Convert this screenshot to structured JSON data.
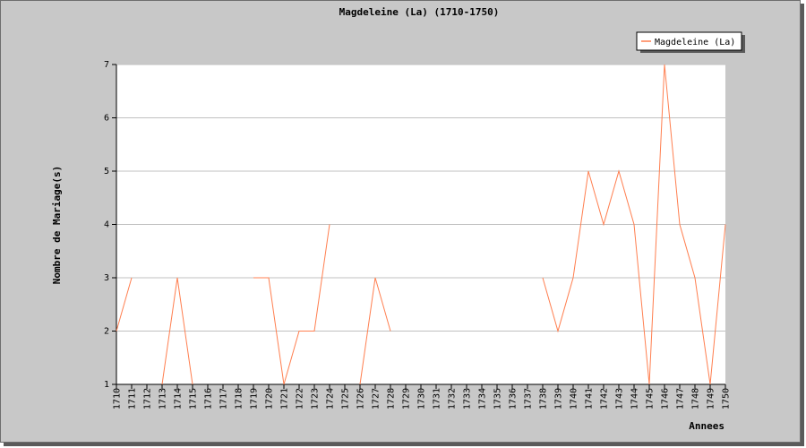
{
  "chart_data": {
    "type": "line",
    "title": "Magdeleine (La) (1710-1750)",
    "xlabel": "Annees",
    "ylabel": "Nombre de Mariage(s)",
    "x": [
      "1710",
      "1711",
      "1712",
      "1713",
      "1714",
      "1715",
      "1716",
      "1717",
      "1718",
      "1719",
      "1720",
      "1721",
      "1722",
      "1723",
      "1724",
      "1725",
      "1726",
      "1727",
      "1728",
      "1729",
      "1730",
      "1731",
      "1732",
      "1733",
      "1734",
      "1735",
      "1736",
      "1737",
      "1738",
      "1739",
      "1740",
      "1741",
      "1742",
      "1743",
      "1744",
      "1745",
      "1746",
      "1747",
      "1748",
      "1749",
      "1750"
    ],
    "series": [
      {
        "name": "Magdeleine (La)",
        "values": [
          2,
          3,
          null,
          1,
          3,
          1,
          null,
          null,
          null,
          3,
          3,
          1,
          2,
          2,
          4,
          null,
          1,
          3,
          2,
          null,
          null,
          null,
          null,
          null,
          null,
          null,
          null,
          null,
          3,
          2,
          3,
          5,
          4,
          5,
          4,
          1,
          7,
          4,
          3,
          1,
          4
        ]
      }
    ],
    "ylim": [
      1,
      7
    ],
    "yticks": [
      "1",
      "2",
      "3",
      "4",
      "5",
      "6",
      "7"
    ],
    "grid": true,
    "legend": "top-right",
    "line_color": "#ff7f50",
    "plot_bg": "#ffffff",
    "frame_bg": "#c8c8c8",
    "grid_color": "#c0c0c0"
  }
}
